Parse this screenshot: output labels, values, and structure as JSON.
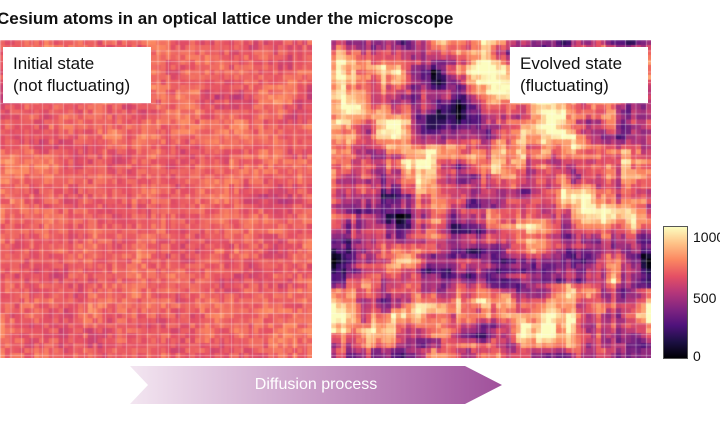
{
  "title": "Cesium atoms in an optical lattice under the microscope",
  "panels": [
    {
      "label_line1": "Initial state",
      "label_line2": "(not fluctuating)"
    },
    {
      "label_line1": "Evolved state",
      "label_line2": "(fluctuating)"
    }
  ],
  "colorbar": {
    "ticks": [
      "1000",
      "500",
      "0"
    ],
    "colormap": [
      "#000004",
      "#1c1044",
      "#4f127b",
      "#812581",
      "#b5367a",
      "#e55064",
      "#fb8761",
      "#fec287",
      "#fcfdbf"
    ]
  },
  "arrow": {
    "label": "Diffusion process",
    "color_start": "#f3e6f1",
    "color_end": "#a0509b"
  }
}
